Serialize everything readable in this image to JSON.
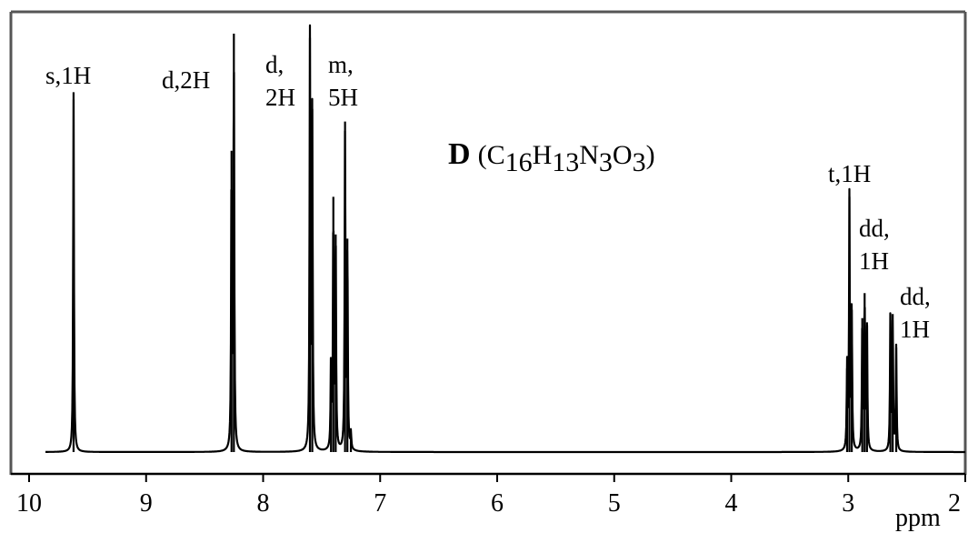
{
  "chart_data": {
    "type": "line",
    "title": "",
    "xlabel": "ppm",
    "ylabel": "",
    "xlim": [
      10,
      2
    ],
    "x_reversed": true,
    "grid": false,
    "x_ticks": [
      "10",
      "9",
      "8",
      "7",
      "6",
      "5",
      "4",
      "3",
      "2"
    ],
    "compound": {
      "letter": "D",
      "formula": {
        "open": "(",
        "parts": [
          {
            "element": "C",
            "count": "16"
          },
          {
            "element": "H",
            "count": "13"
          },
          {
            "element": "N",
            "count": "3"
          },
          {
            "element": "O",
            "count": "3"
          }
        ],
        "close": ")"
      }
    },
    "signals": [
      {
        "label_lines": [
          "s,1H"
        ],
        "multiplicity": "s",
        "integration": "1H",
        "lines": [
          {
            "ppm": 9.62,
            "intensity": 0.86
          }
        ]
      },
      {
        "label_lines": [
          "d,2H"
        ],
        "multiplicity": "d",
        "integration": "2H",
        "lines": [
          {
            "ppm": 8.27,
            "intensity": 0.72
          },
          {
            "ppm": 8.25,
            "intensity": 1.0
          }
        ]
      },
      {
        "label_lines": [
          "d,",
          "2H"
        ],
        "multiplicity": "d",
        "integration": "2H",
        "lines": [
          {
            "ppm": 7.6,
            "intensity": 0.99
          },
          {
            "ppm": 7.58,
            "intensity": 0.82
          }
        ]
      },
      {
        "label_lines": [
          "m,",
          "5H"
        ],
        "multiplicity": "m",
        "integration": "5H",
        "lines": [
          {
            "ppm": 7.42,
            "intensity": 0.22
          },
          {
            "ppm": 7.4,
            "intensity": 0.61
          },
          {
            "ppm": 7.38,
            "intensity": 0.52
          },
          {
            "ppm": 7.3,
            "intensity": 0.79
          },
          {
            "ppm": 7.28,
            "intensity": 0.51
          },
          {
            "ppm": 7.25,
            "intensity": 0.04
          }
        ]
      },
      {
        "label_lines": [
          "t,1H"
        ],
        "multiplicity": "t",
        "integration": "1H",
        "lines": [
          {
            "ppm": 3.01,
            "intensity": 0.2
          },
          {
            "ppm": 2.99,
            "intensity": 0.61
          },
          {
            "ppm": 2.97,
            "intensity": 0.34
          }
        ]
      },
      {
        "label_lines": [
          "dd,",
          "1H"
        ],
        "multiplicity": "dd",
        "integration": "1H",
        "lines": [
          {
            "ppm": 2.88,
            "intensity": 0.32
          },
          {
            "ppm": 2.86,
            "intensity": 0.38
          },
          {
            "ppm": 2.84,
            "intensity": 0.31
          }
        ]
      },
      {
        "label_lines": [
          "dd,",
          "1H"
        ],
        "multiplicity": "dd",
        "integration": "1H",
        "lines": [
          {
            "ppm": 2.64,
            "intensity": 0.33
          },
          {
            "ppm": 2.62,
            "intensity": 0.33
          },
          {
            "ppm": 2.59,
            "intensity": 0.25
          }
        ]
      }
    ]
  }
}
